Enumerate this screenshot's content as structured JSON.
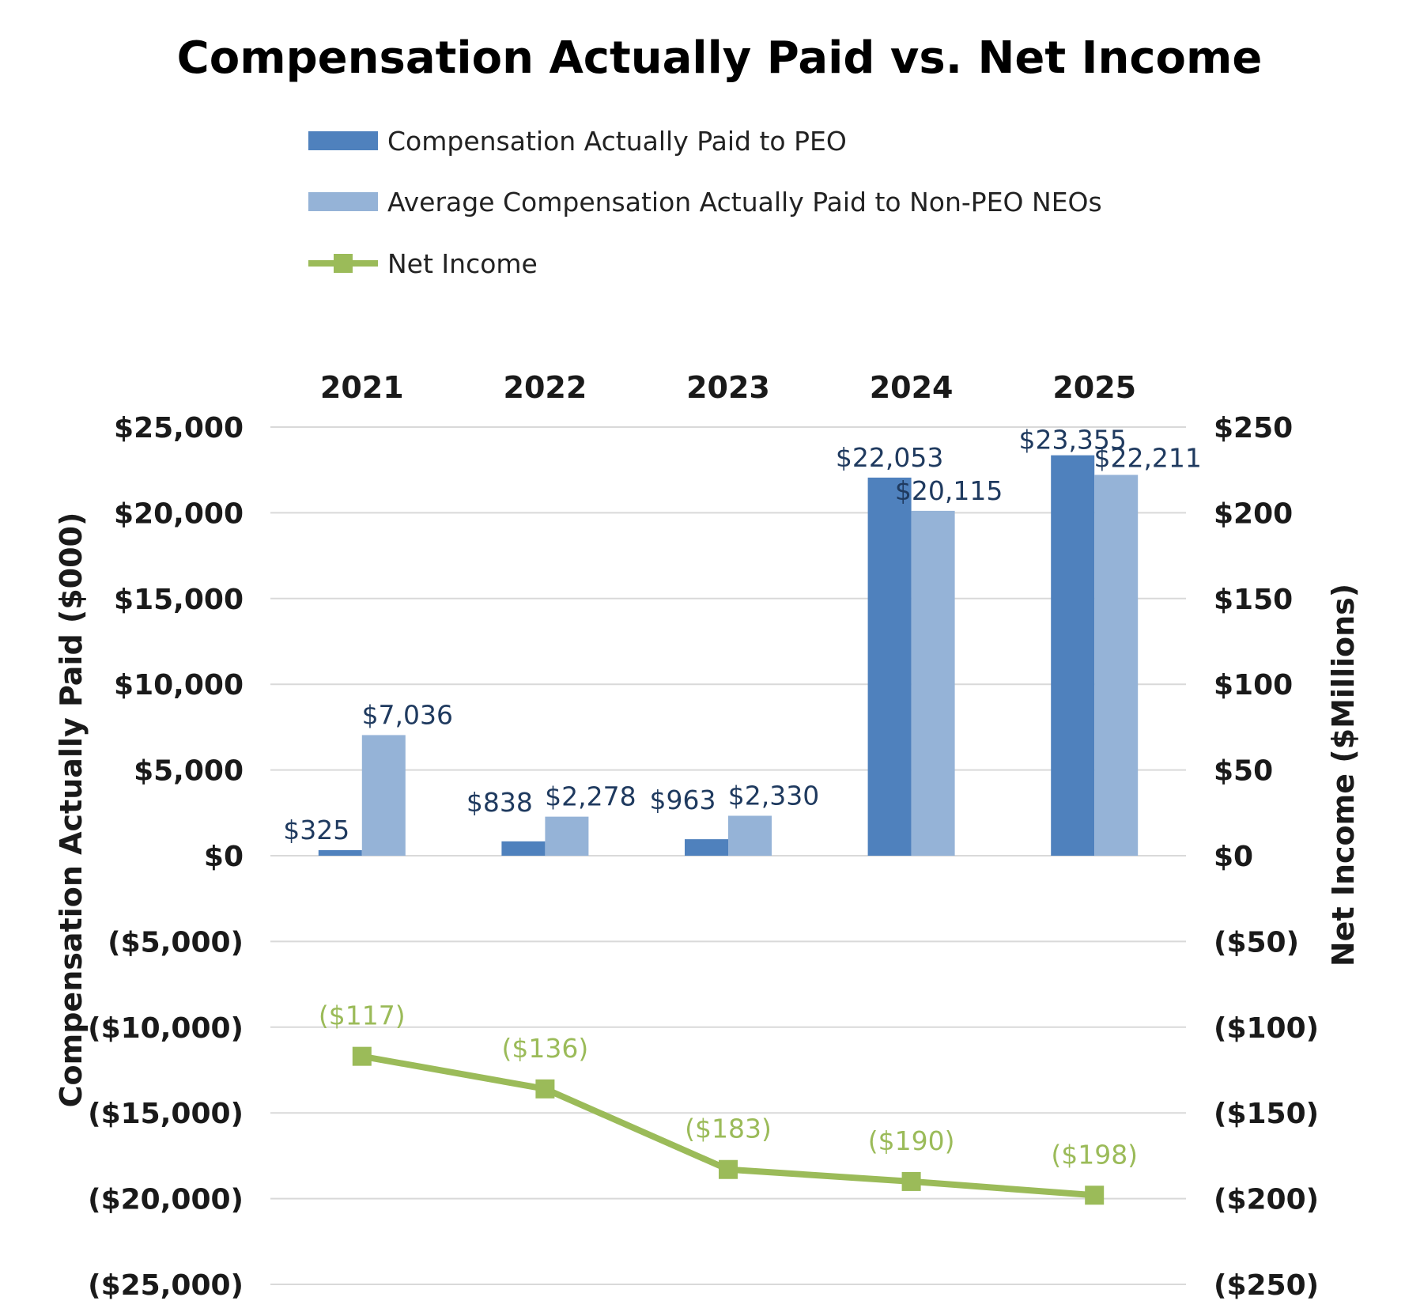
{
  "chart_data": {
    "type": "bar",
    "title": "Compensation Actually Paid vs. Net Income",
    "categories": [
      "2021",
      "2022",
      "2023",
      "2024",
      "2025"
    ],
    "series": [
      {
        "name": "Compensation Actually Paid to PEO",
        "kind": "bar",
        "axis": "left",
        "color": "#4f81bd",
        "values": [
          325,
          838,
          963,
          22053,
          23355
        ],
        "labels": [
          "$325",
          "$838",
          "$963",
          "$22,053",
          "$23,355"
        ]
      },
      {
        "name": "Average Compensation Actually Paid to Non-PEO NEOs",
        "kind": "bar",
        "axis": "left",
        "color": "#95b3d7",
        "values": [
          7036,
          2278,
          2330,
          20115,
          22211
        ],
        "labels": [
          "$7,036",
          "$2,278",
          "$2,330",
          "$20,115",
          "$22,211"
        ]
      },
      {
        "name": "Net Income",
        "kind": "line",
        "axis": "right",
        "color": "#9bbb59",
        "values": [
          -117,
          -136,
          -183,
          -190,
          -198
        ],
        "labels": [
          "($117)",
          "($136)",
          "($183)",
          "($190)",
          "($198)"
        ]
      }
    ],
    "ylabel": "Compensation Actually Paid ($000)",
    "y2label": "Net Income ($Millions)",
    "ylim": [
      -25000,
      25000
    ],
    "y2lim": [
      -250,
      250
    ],
    "yticks": [
      25000,
      20000,
      15000,
      10000,
      5000,
      0,
      -5000,
      -10000,
      -15000,
      -20000,
      -25000
    ],
    "ytick_labels": [
      "$25,000",
      "$20,000",
      "$15,000",
      "$10,000",
      "$5,000",
      "$0",
      "($5,000)",
      "($10,000)",
      "($15,000)",
      "($20,000)",
      "($25,000)"
    ],
    "y2ticks": [
      250,
      200,
      150,
      100,
      50,
      0,
      -50,
      -100,
      -150,
      -200,
      -250
    ],
    "y2tick_labels": [
      "$250",
      "$200",
      "$150",
      "$100",
      "$50",
      "$0",
      "($50)",
      "($100)",
      "($150)",
      "($200)",
      "($250)"
    ],
    "grid": true,
    "legend_position": "top"
  }
}
